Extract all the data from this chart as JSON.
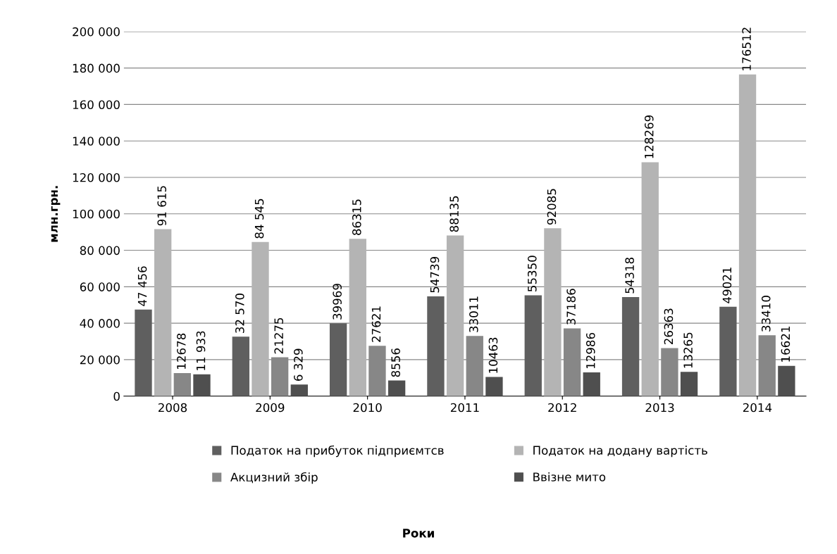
{
  "chart_data": {
    "type": "bar",
    "annotations": [
      "Роки"
    ],
    "ylabel": "млн.грн.",
    "categories": [
      "2008",
      "2009",
      "2010",
      "2011",
      "2012",
      "2013",
      "2014"
    ],
    "series": [
      {
        "name": "Податок на прибуток підприємтсв",
        "color": "#5f5f5f",
        "values": [
          47456,
          32570,
          39969,
          54739,
          55350,
          54318,
          49021
        ],
        "value_labels": [
          "47 456",
          "32 570",
          "39969",
          "54739",
          "55350",
          "54318",
          "49021"
        ]
      },
      {
        "name": "Податок на додану вартість",
        "color": "#b4b4b4",
        "values": [
          91615,
          84545,
          86315,
          88135,
          92085,
          128269,
          176512
        ],
        "value_labels": [
          "91 615",
          "84 545",
          "86315",
          "88135",
          "92085",
          "128269",
          "176512"
        ]
      },
      {
        "name": "Акцизний збір",
        "color": "#878787",
        "values": [
          12678,
          21275,
          27621,
          33011,
          37186,
          26363,
          33410
        ],
        "value_labels": [
          "12678",
          "21275",
          "27621",
          "33011",
          "37186",
          "26363",
          "33410"
        ]
      },
      {
        "name": "Ввізне мито",
        "color": "#4f4f4f",
        "values": [
          11933,
          6329,
          8556,
          10463,
          12986,
          13265,
          16621
        ],
        "value_labels": [
          "11 933",
          "6 329",
          "8556",
          "10463",
          "12986",
          "13265",
          "16621"
        ]
      }
    ],
    "ylim": [
      0,
      200000
    ],
    "yticks": [
      0,
      {
        "value": 20000,
        "label": "20 000"
      },
      {
        "value": 40000,
        "label": "40 000"
      },
      {
        "value": 60000,
        "label": "60 000"
      },
      {
        "value": 80000,
        "label": "80 000"
      },
      {
        "value": 100000,
        "label": "100 000"
      },
      {
        "value": 120000,
        "label": "120 000"
      },
      {
        "value": 140000,
        "label": "140 000"
      },
      {
        "value": 160000,
        "label": "160 000"
      },
      {
        "value": 180000,
        "label": "180 000"
      },
      {
        "value": 200000,
        "label": "200 000"
      }
    ],
    "grid": "y",
    "legend": "bottom"
  }
}
